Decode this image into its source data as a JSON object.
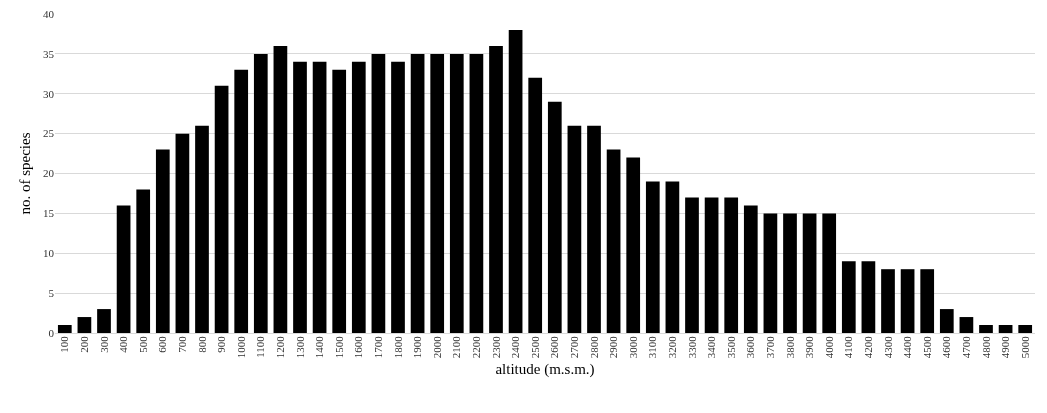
{
  "chart_data": {
    "type": "bar",
    "xlabel": "altitude (m.s.m.)",
    "ylabel": "no. of species",
    "categories": [
      "100",
      "200",
      "300",
      "400",
      "500",
      "600",
      "700",
      "800",
      "900",
      "1000",
      "1100",
      "1200",
      "1300",
      "1400",
      "1500",
      "1600",
      "1700",
      "1800",
      "1900",
      "2000",
      "2100",
      "2200",
      "2300",
      "2400",
      "2500",
      "2600",
      "2700",
      "2800",
      "2900",
      "3000",
      "3100",
      "3200",
      "3300",
      "3400",
      "3500",
      "3600",
      "3700",
      "3800",
      "3900",
      "4000",
      "4100",
      "4200",
      "4300",
      "4400",
      "4500",
      "4600",
      "4700",
      "4800",
      "4900",
      "5000"
    ],
    "values": [
      1,
      2,
      3,
      16,
      18,
      23,
      25,
      26,
      31,
      33,
      35,
      36,
      34,
      34,
      33,
      34,
      35,
      34,
      35,
      35,
      35,
      35,
      36,
      38,
      32,
      29,
      26,
      26,
      23,
      22,
      19,
      19,
      17,
      17,
      17,
      16,
      15,
      15,
      15,
      15,
      9,
      9,
      8,
      8,
      8,
      3,
      2,
      1,
      1,
      1
    ],
    "color": "#000000",
    "ylim": [
      0,
      40
    ],
    "yticks": [
      0,
      5,
      10,
      15,
      20,
      25,
      30,
      35,
      40
    ],
    "grid": "y",
    "legend": false
  }
}
